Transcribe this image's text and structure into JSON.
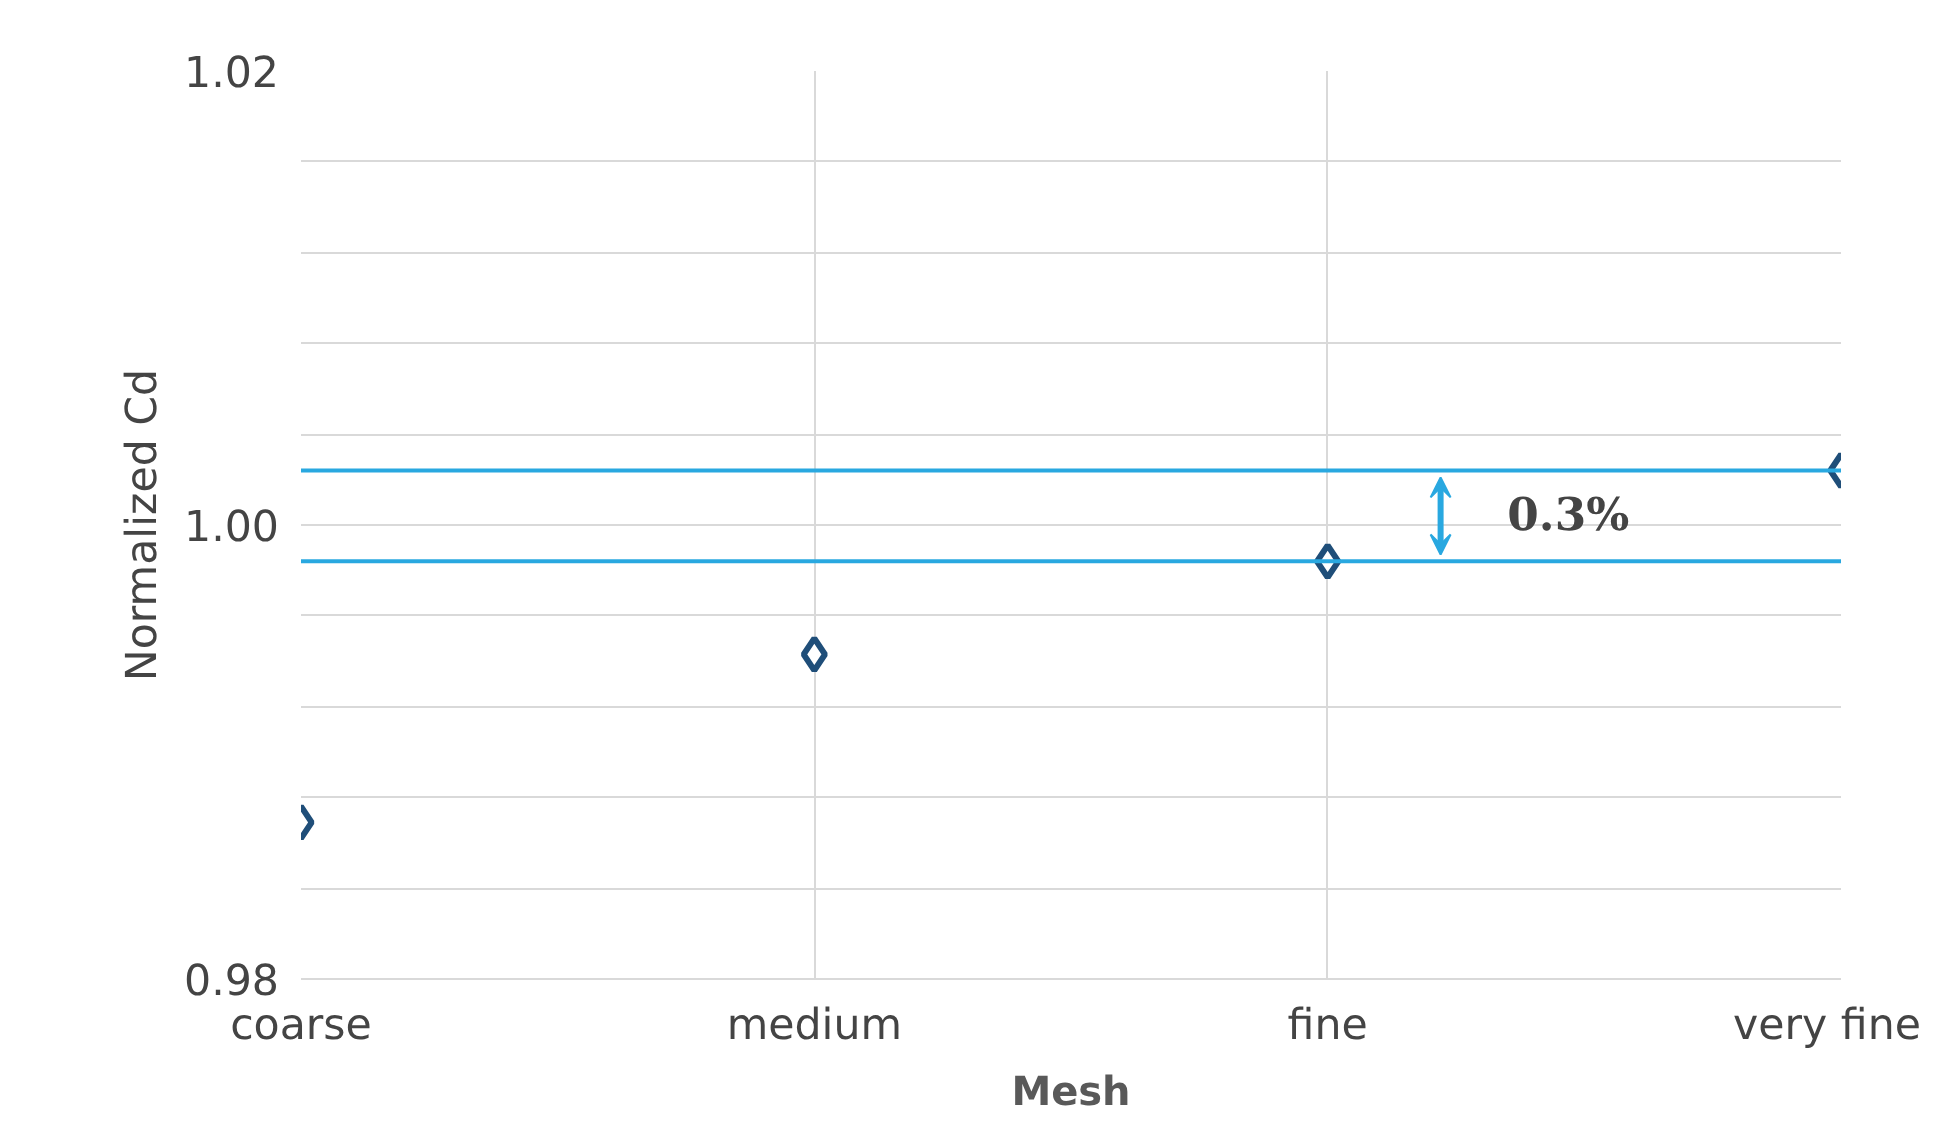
{
  "chart_data": {
    "type": "scatter",
    "xlabel": "Mesh",
    "ylabel": "Normalized Cd",
    "categories": [
      "coarse",
      "medium",
      "fine",
      "very fine"
    ],
    "series": [
      {
        "color": "#1f4e79",
        "values": [
          0.9869,
          0.9943,
          0.9984,
          1.0024
        ]
      }
    ],
    "marker": "diamond",
    "grid": true,
    "ylim": [
      0.98,
      1.02
    ],
    "yticks": [
      0.98,
      {
        "value": 0.984,
        "label": null
      },
      {
        "value": 0.988,
        "label": null
      },
      {
        "value": 0.992,
        "label": null
      },
      {
        "value": 0.996,
        "label": null
      },
      "1.00",
      {
        "value": 1.004,
        "label": null
      },
      {
        "value": 1.008,
        "label": null
      },
      {
        "value": 1.012,
        "label": null
      },
      {
        "value": 1.016,
        "label": null
      },
      1.02
    ],
    "ref_lines": [
      {
        "axis": "y",
        "value": 1.0024,
        "color": "#29a8e0"
      },
      {
        "axis": "y",
        "value": 0.9984,
        "color": "#29a8e0"
      }
    ],
    "annotations": [
      "0.3%"
    ]
  }
}
